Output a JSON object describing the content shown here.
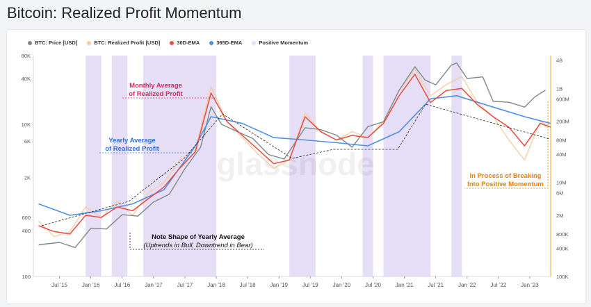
{
  "page_title": "Bitcoin: Realized Profit Momentum",
  "watermark": "glassnode",
  "legend": [
    {
      "label": "BTC: Price [USD]",
      "color": "#7c8a86"
    },
    {
      "label": "BTC: Realized Profit [USD]",
      "color": "#f6c9a0"
    },
    {
      "label": "30D-EMA",
      "color": "#e74c3c"
    },
    {
      "label": "365D-EMA",
      "color": "#4d8fe8"
    },
    {
      "label": "Positive Momentum",
      "color": "#e6ddf6"
    }
  ],
  "chart_data": {
    "type": "line",
    "title": "Bitcoin: Realized Profit Momentum",
    "x_ticks": [
      "Jul '15",
      "Jan '16",
      "Jul '16",
      "Jan '17",
      "Jul '17",
      "Jan '18",
      "Jul '18",
      "Jan '19",
      "Jul '19",
      "Jan '20",
      "Jul '20",
      "Jan '21",
      "Jul '21",
      "Jan '22",
      "Jul '22",
      "Jan '23"
    ],
    "x_range": [
      "2015-02",
      "2023-05"
    ],
    "y_left": {
      "scale": "log",
      "label": "BTC: Price [USD]",
      "range": [
        100,
        80000
      ],
      "ticks": [
        "80K",
        "40K",
        "10K",
        "6K",
        "2K",
        "600",
        "400",
        "100"
      ]
    },
    "y_right": {
      "scale": "log",
      "label": "Realized Profit [USD]",
      "range": [
        100000,
        5000000000
      ],
      "ticks": [
        "4B",
        "1B",
        "600M",
        "200M",
        "80M",
        "40M",
        "10M",
        "6M",
        "2M",
        "800K",
        "400K",
        "100K"
      ]
    },
    "series": [
      {
        "name": "BTC: Price [USD]",
        "axis": "left",
        "x": [
          "2015-03",
          "2015-07",
          "2015-10",
          "2016-01",
          "2016-04",
          "2016-07",
          "2016-10",
          "2017-01",
          "2017-04",
          "2017-07",
          "2017-10",
          "2017-12",
          "2018-02",
          "2018-05",
          "2018-08",
          "2018-11",
          "2019-02",
          "2019-06",
          "2019-09",
          "2019-12",
          "2020-03",
          "2020-06",
          "2020-09",
          "2020-12",
          "2021-03",
          "2021-05",
          "2021-07",
          "2021-10",
          "2021-11",
          "2022-01",
          "2022-04",
          "2022-06",
          "2022-09",
          "2022-12",
          "2023-02",
          "2023-04"
        ],
        "values": [
          260,
          280,
          240,
          430,
          420,
          650,
          620,
          950,
          1200,
          2600,
          5000,
          17000,
          10000,
          8000,
          6500,
          4000,
          3500,
          9000,
          8500,
          7200,
          5000,
          9300,
          10800,
          28000,
          57000,
          38000,
          33000,
          60000,
          64000,
          40000,
          42000,
          20000,
          19500,
          16800,
          23000,
          28000
        ]
      },
      {
        "name": "BTC: Realized Profit [USD]",
        "axis": "right",
        "x": [
          "2015-03",
          "2015-06",
          "2015-09",
          "2015-12",
          "2016-03",
          "2016-06",
          "2016-09",
          "2016-12",
          "2017-03",
          "2017-06",
          "2017-09",
          "2017-12",
          "2018-03",
          "2018-06",
          "2018-09",
          "2018-12",
          "2019-03",
          "2019-06",
          "2019-09",
          "2019-12",
          "2020-03",
          "2020-06",
          "2020-09",
          "2020-12",
          "2021-03",
          "2021-06",
          "2021-09",
          "2021-12",
          "2022-03",
          "2022-06",
          "2022-09",
          "2022-12",
          "2023-03",
          "2023-05"
        ],
        "values": [
          1500000,
          700000,
          900000,
          3000000,
          1800000,
          4000000,
          2000000,
          6000000,
          10000000,
          30000000,
          50000000,
          1100000000,
          200000000,
          90000000,
          40000000,
          20000000,
          30000000,
          300000000,
          120000000,
          80000000,
          120000000,
          90000000,
          200000000,
          900000000,
          2500000000,
          700000000,
          1200000000,
          1800000000,
          500000000,
          250000000,
          80000000,
          30000000,
          200000000,
          150000000
        ]
      },
      {
        "name": "30D-EMA",
        "axis": "right",
        "x": [
          "2015-03",
          "2015-06",
          "2015-09",
          "2015-12",
          "2016-03",
          "2016-06",
          "2016-09",
          "2016-12",
          "2017-03",
          "2017-06",
          "2017-09",
          "2017-12",
          "2018-03",
          "2018-06",
          "2018-09",
          "2018-12",
          "2019-03",
          "2019-06",
          "2019-09",
          "2019-12",
          "2020-03",
          "2020-06",
          "2020-09",
          "2020-12",
          "2021-03",
          "2021-06",
          "2021-09",
          "2021-12",
          "2022-03",
          "2022-06",
          "2022-09",
          "2022-12",
          "2023-03",
          "2023-05"
        ],
        "values": [
          1200000,
          900000,
          800000,
          2000000,
          1800000,
          3000000,
          2500000,
          4500000,
          8000000,
          20000000,
          45000000,
          800000000,
          200000000,
          100000000,
          50000000,
          25000000,
          30000000,
          250000000,
          120000000,
          80000000,
          100000000,
          90000000,
          180000000,
          700000000,
          2000000000,
          500000000,
          900000000,
          1000000000,
          450000000,
          250000000,
          150000000,
          60000000,
          180000000,
          150000000
        ]
      },
      {
        "name": "365D-EMA",
        "axis": "right",
        "x": [
          "2015-03",
          "2015-09",
          "2016-03",
          "2016-09",
          "2017-03",
          "2017-09",
          "2017-12",
          "2018-06",
          "2018-12",
          "2019-06",
          "2019-12",
          "2020-06",
          "2020-12",
          "2021-06",
          "2021-11",
          "2022-06",
          "2022-12",
          "2023-05"
        ],
        "values": [
          3500000,
          2000000,
          2500000,
          3500000,
          7000000,
          60000000,
          250000000,
          180000000,
          90000000,
          80000000,
          70000000,
          60000000,
          120000000,
          600000000,
          700000000,
          400000000,
          250000000,
          180000000
        ]
      },
      {
        "name": "Positive Momentum",
        "type": "band",
        "ranges": [
          [
            "2015-12",
            "2016-03"
          ],
          [
            "2016-05",
            "2016-08"
          ],
          [
            "2016-11",
            "2018-01"
          ],
          [
            "2019-03",
            "2019-08"
          ],
          [
            "2020-05",
            "2020-07"
          ],
          [
            "2020-09",
            "2021-06"
          ],
          [
            "2021-10",
            "2021-12"
          ]
        ]
      }
    ],
    "annotations": [
      {
        "text": [
          "Monthly Average",
          "of Realized Profit"
        ],
        "color": "#e0245e"
      },
      {
        "text": [
          "Yearly Average",
          "of Realized Profit"
        ],
        "color": "#2f6fd6"
      },
      {
        "text": [
          "Note Shape of Yearly Average",
          "(Uptrends in Bull, Downtrend in Bear)"
        ],
        "color": "#111111"
      },
      {
        "text": [
          "In Process of Breaking",
          "Into Positive Momentum"
        ],
        "color": "#f07d00"
      }
    ]
  }
}
